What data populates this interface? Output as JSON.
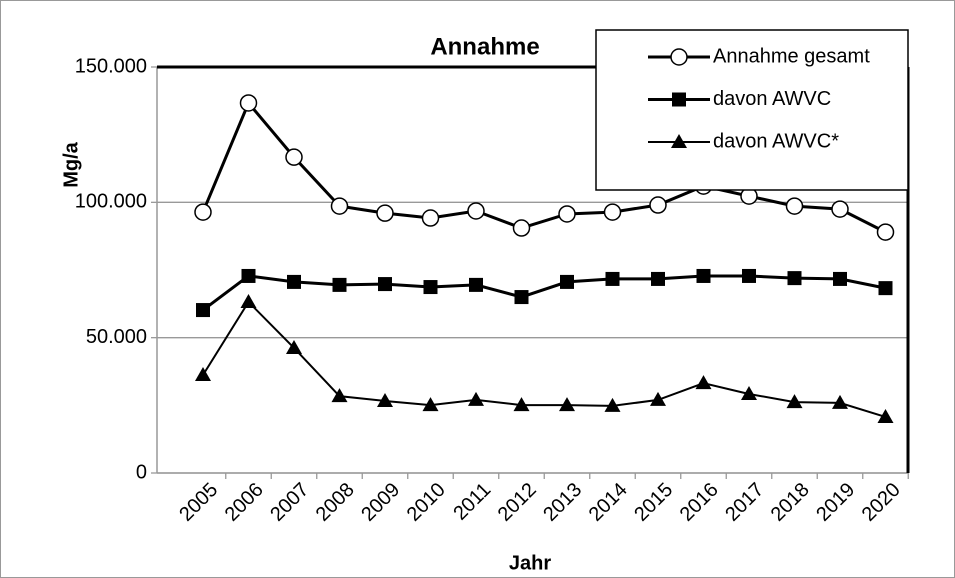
{
  "chart_data": {
    "type": "line",
    "title": "Annahme",
    "y_label": "Mg/a",
    "x_label": "Jahr",
    "categories": [
      "2005",
      "2006",
      "2007",
      "2008",
      "2009",
      "2010",
      "2011",
      "2012",
      "2013",
      "2014",
      "2015",
      "2016",
      "2017",
      "2018",
      "2019",
      "2020"
    ],
    "series": [
      {
        "name": "Annahme gesamt",
        "color": "#000000",
        "marker": "circle",
        "values": [
          96400,
          136700,
          116700,
          98600,
          96000,
          94200,
          96800,
          90500,
          95700,
          96400,
          99000,
          106000,
          102300,
          98600,
          97500,
          89000
        ]
      },
      {
        "name": "davon AWVC",
        "color": "#000000",
        "marker": "square",
        "values": [
          60200,
          72800,
          70600,
          69500,
          69800,
          68700,
          69500,
          65000,
          70600,
          71700,
          71700,
          72800,
          72800,
          72000,
          71700,
          68300
        ]
      },
      {
        "name": "davon AWVC*",
        "color": "#000000",
        "marker": "triangle",
        "values": [
          36200,
          63200,
          46200,
          28400,
          26600,
          25100,
          27000,
          25100,
          25100,
          24800,
          27000,
          33200,
          29200,
          26200,
          25900,
          20700
        ]
      }
    ],
    "ylim": [
      0,
      150000
    ],
    "yticks": [
      0,
      {
        "value": 50000,
        "label": "50.000"
      },
      {
        "value": 100000,
        "label": "100.000"
      },
      {
        "value": 150000,
        "label": "150.000"
      }
    ],
    "grid": true,
    "legend": "top-right"
  }
}
